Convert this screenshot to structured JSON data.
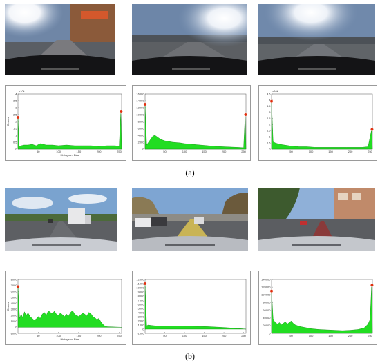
{
  "captions": {
    "a": "(a)",
    "b": "(b)"
  },
  "colors": {
    "fill": "#22dd22",
    "stroke": "#118811",
    "marker": "#e03010"
  },
  "photos": [
    {
      "id": "a1",
      "scene": "glare-street"
    },
    {
      "id": "a2",
      "scene": "glare-road"
    },
    {
      "id": "a3",
      "scene": "glare-highway"
    },
    {
      "id": "b1",
      "scene": "highway-truck"
    },
    {
      "id": "b2",
      "scene": "city-street"
    },
    {
      "id": "b3",
      "scene": "urban-road"
    }
  ],
  "chart_data": [
    {
      "id": "a1",
      "type": "area",
      "ylim": [
        0,
        4
      ],
      "exponent": "×10⁴",
      "yticks": [
        "0",
        "0.5",
        "1",
        "1.5",
        "2",
        "2.5",
        "3",
        "3.5",
        "4"
      ],
      "xticks": [
        "50",
        "100",
        "150",
        "200",
        "250"
      ],
      "xlim": [
        0,
        256
      ],
      "xlabel": "Histogram Bins",
      "ylabel": "Counts",
      "peaks": [
        [
          0,
          2.3
        ],
        [
          255,
          2.7
        ]
      ],
      "x": [
        0,
        3,
        8,
        15,
        25,
        35,
        45,
        55,
        70,
        85,
        100,
        120,
        140,
        160,
        180,
        200,
        220,
        240,
        250,
        254,
        256
      ],
      "y": [
        2.3,
        0.2,
        0.25,
        0.3,
        0.3,
        0.35,
        0.25,
        0.4,
        0.3,
        0.3,
        0.25,
        0.3,
        0.25,
        0.25,
        0.25,
        0.2,
        0.25,
        0.25,
        0.2,
        2.7,
        0
      ]
    },
    {
      "id": "a2",
      "type": "area",
      "ylim": [
        0,
        16000
      ],
      "exponent": "",
      "yticks": [
        "0",
        "2000",
        "4000",
        "6000",
        "8000",
        "10000",
        "12000",
        "14000",
        "16000"
      ],
      "xticks": [
        "50",
        "100",
        "150",
        "200",
        "250"
      ],
      "xlim": [
        0,
        256
      ],
      "xlabel": "",
      "ylabel": "",
      "peaks": [
        [
          0,
          13000
        ],
        [
          255,
          10000
        ]
      ],
      "x": [
        0,
        4,
        10,
        15,
        20,
        25,
        30,
        35,
        40,
        50,
        60,
        70,
        80,
        90,
        100,
        120,
        140,
        160,
        180,
        200,
        220,
        240,
        250,
        254,
        256
      ],
      "y": [
        13000,
        1200,
        2200,
        3000,
        3800,
        4000,
        3600,
        3200,
        2800,
        2400,
        2200,
        2000,
        1900,
        1800,
        1600,
        1400,
        1200,
        1000,
        800,
        700,
        600,
        500,
        400,
        10000,
        0
      ]
    },
    {
      "id": "a3",
      "type": "area",
      "ylim": [
        0,
        4.5
      ],
      "exponent": "×10⁴",
      "yticks": [
        "0",
        "0.5",
        "1",
        "1.5",
        "2",
        "2.5",
        "3",
        "3.5",
        "4",
        "4.5"
      ],
      "xticks": [
        "50",
        "100",
        "150",
        "200",
        "250"
      ],
      "xlim": [
        0,
        256
      ],
      "xlabel": "",
      "ylabel": "",
      "peaks": [
        [
          0,
          3.9
        ],
        [
          255,
          1.6
        ]
      ],
      "x": [
        0,
        4,
        10,
        20,
        30,
        40,
        50,
        70,
        90,
        110,
        130,
        150,
        170,
        190,
        210,
        230,
        245,
        254,
        256
      ],
      "y": [
        3.9,
        0.6,
        0.5,
        0.4,
        0.35,
        0.3,
        0.25,
        0.2,
        0.2,
        0.15,
        0.15,
        0.15,
        0.15,
        0.15,
        0.15,
        0.15,
        0.2,
        1.6,
        0
      ]
    },
    {
      "id": "b1",
      "type": "area",
      "ylim": [
        -1000,
        8000
      ],
      "exponent": "",
      "yticks": [
        "-1000",
        "0",
        "1000",
        "2000",
        "3000",
        "4000",
        "5000",
        "6000",
        "7000",
        "8000"
      ],
      "xticks": [
        "50",
        "100",
        "150",
        "200",
        "250"
      ],
      "xlim": [
        0,
        256
      ],
      "xlabel": "Histogram Bins",
      "ylabel": "Counts",
      "peaks": [
        [
          0,
          6800
        ]
      ],
      "x": [
        0,
        4,
        8,
        12,
        16,
        20,
        25,
        30,
        35,
        40,
        45,
        50,
        55,
        60,
        65,
        70,
        75,
        80,
        85,
        90,
        95,
        100,
        105,
        110,
        115,
        120,
        125,
        130,
        135,
        140,
        145,
        150,
        155,
        160,
        165,
        170,
        175,
        180,
        185,
        190,
        195,
        200,
        205,
        210,
        215,
        220,
        256
      ],
      "y": [
        6800,
        1500,
        2200,
        1600,
        2600,
        2000,
        2400,
        1800,
        1500,
        1200,
        1400,
        1800,
        1500,
        2200,
        2500,
        2000,
        2800,
        2500,
        2300,
        2700,
        2200,
        2000,
        2400,
        2100,
        1800,
        2200,
        1900,
        2500,
        2800,
        2200,
        2000,
        1800,
        2100,
        2400,
        2200,
        1900,
        2500,
        2300,
        1800,
        1600,
        1300,
        1500,
        900,
        500,
        200,
        100,
        0
      ]
    },
    {
      "id": "b2",
      "type": "area",
      "ylim": [
        -1000,
        12000
      ],
      "exponent": "",
      "yticks": [
        "-1000",
        "0",
        "1000",
        "2000",
        "3000",
        "4000",
        "5000",
        "6000",
        "7000",
        "8000",
        "9000",
        "10000",
        "11000",
        "12000"
      ],
      "xticks": [
        "50",
        "100",
        "150",
        "200",
        "250"
      ],
      "xlim": [
        0,
        256
      ],
      "xlabel": "",
      "ylabel": "",
      "peaks": [
        [
          0,
          11000
        ]
      ],
      "x": [
        0,
        4,
        8,
        15,
        25,
        40,
        60,
        80,
        100,
        120,
        140,
        160,
        180,
        200,
        215,
        225,
        235,
        245,
        256
      ],
      "y": [
        11000,
        800,
        1000,
        900,
        800,
        700,
        700,
        750,
        700,
        700,
        650,
        600,
        500,
        400,
        300,
        200,
        150,
        100,
        0
      ]
    },
    {
      "id": "b3",
      "type": "area",
      "ylim": [
        0,
        140000
      ],
      "exponent": "",
      "yticks": [
        "0",
        "20000",
        "40000",
        "60000",
        "80000",
        "100000",
        "120000",
        "140000"
      ],
      "xticks": [
        "50",
        "100",
        "150",
        "200",
        "250"
      ],
      "xlim": [
        0,
        256
      ],
      "xlabel": "",
      "ylabel": "",
      "peaks": [
        [
          0,
          110000
        ],
        [
          255,
          125000
        ]
      ],
      "x": [
        0,
        4,
        8,
        12,
        16,
        20,
        25,
        30,
        35,
        40,
        45,
        50,
        55,
        60,
        70,
        80,
        90,
        100,
        120,
        140,
        160,
        180,
        200,
        220,
        235,
        245,
        250,
        254,
        256
      ],
      "y": [
        110000,
        38000,
        30000,
        26000,
        24000,
        28000,
        22000,
        26000,
        30000,
        24000,
        28000,
        32000,
        26000,
        22000,
        18000,
        16000,
        14000,
        12000,
        10000,
        9000,
        8000,
        7000,
        8000,
        10000,
        14000,
        24000,
        36000,
        125000,
        0
      ]
    }
  ]
}
